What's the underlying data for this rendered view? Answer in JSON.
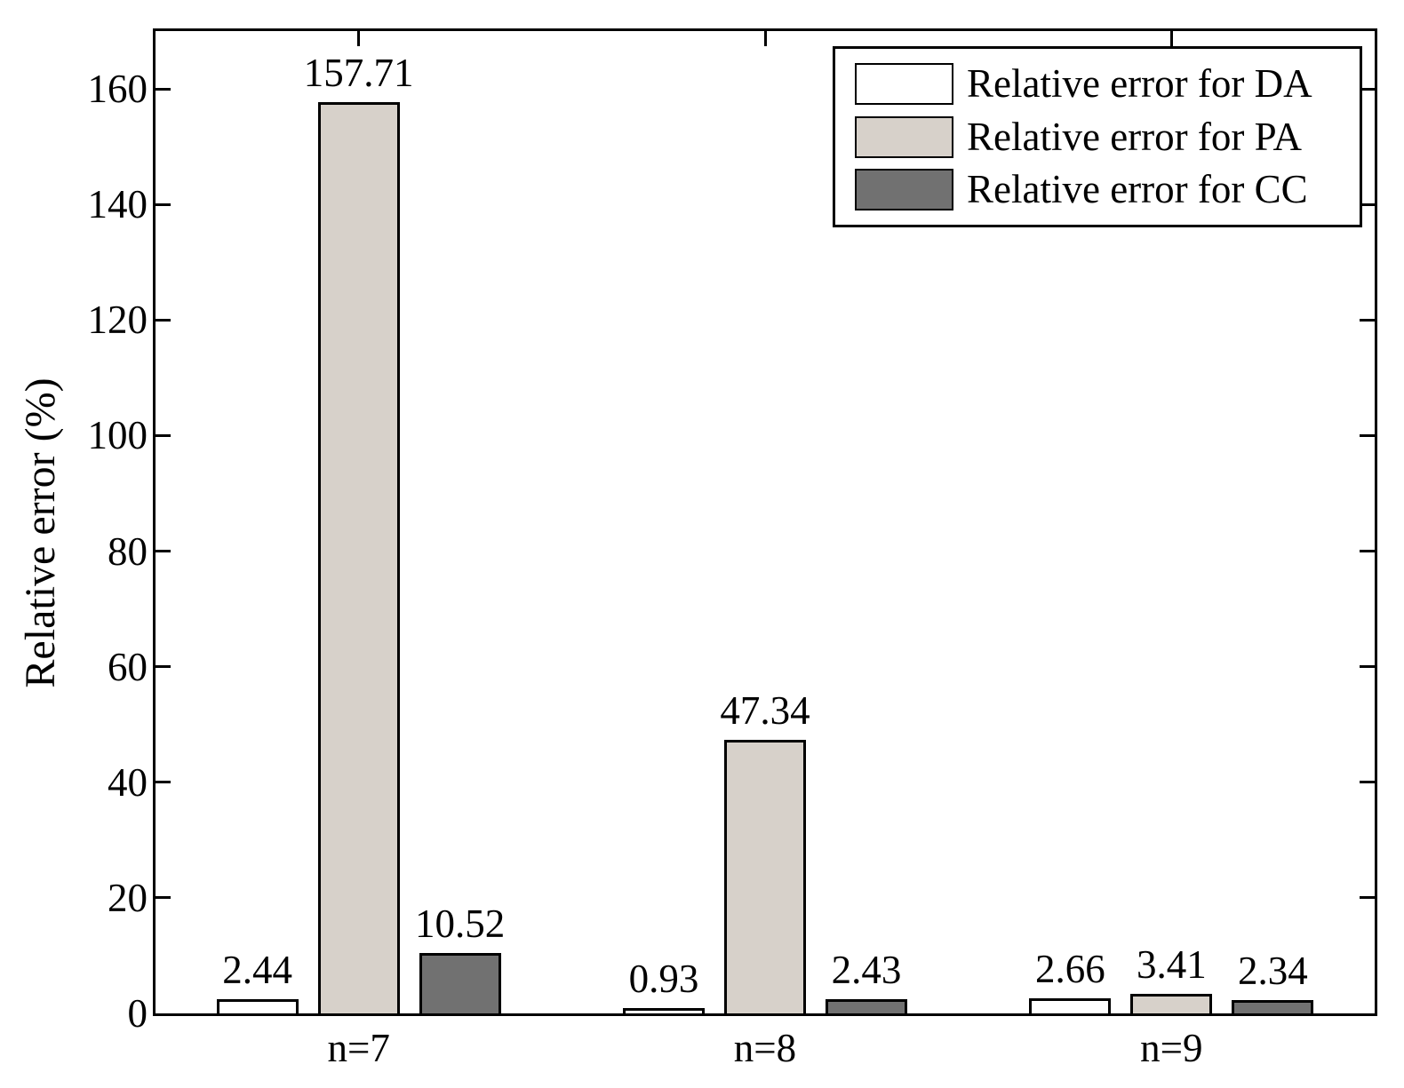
{
  "chart_data": {
    "type": "bar",
    "title": "",
    "xlabel": "",
    "ylabel": "Relative error (%)",
    "categories": [
      "n=7",
      "n=8",
      "n=9"
    ],
    "series": [
      {
        "name": "Relative error for DA",
        "color": "#ffffff",
        "values": [
          2.44,
          0.93,
          2.66
        ],
        "labels": [
          "2.44",
          "0.93",
          "2.66"
        ]
      },
      {
        "name": "Relative error for PA",
        "color": "#d7d1ca",
        "values": [
          157.71,
          47.34,
          3.41
        ],
        "labels": [
          "157.71",
          "47.34",
          "3.41"
        ]
      },
      {
        "name": "Relative error for CC",
        "color": "#717171",
        "values": [
          10.52,
          2.43,
          2.34
        ],
        "labels": [
          "10.52",
          "2.43",
          "2.34"
        ]
      }
    ],
    "yticks": [
      0,
      20,
      40,
      60,
      80,
      100,
      120,
      140,
      160
    ],
    "ylim": [
      0,
      170
    ],
    "grid": false,
    "legend_position": "top-right",
    "edge_color": "#000000",
    "background_color": "#ffffff"
  }
}
